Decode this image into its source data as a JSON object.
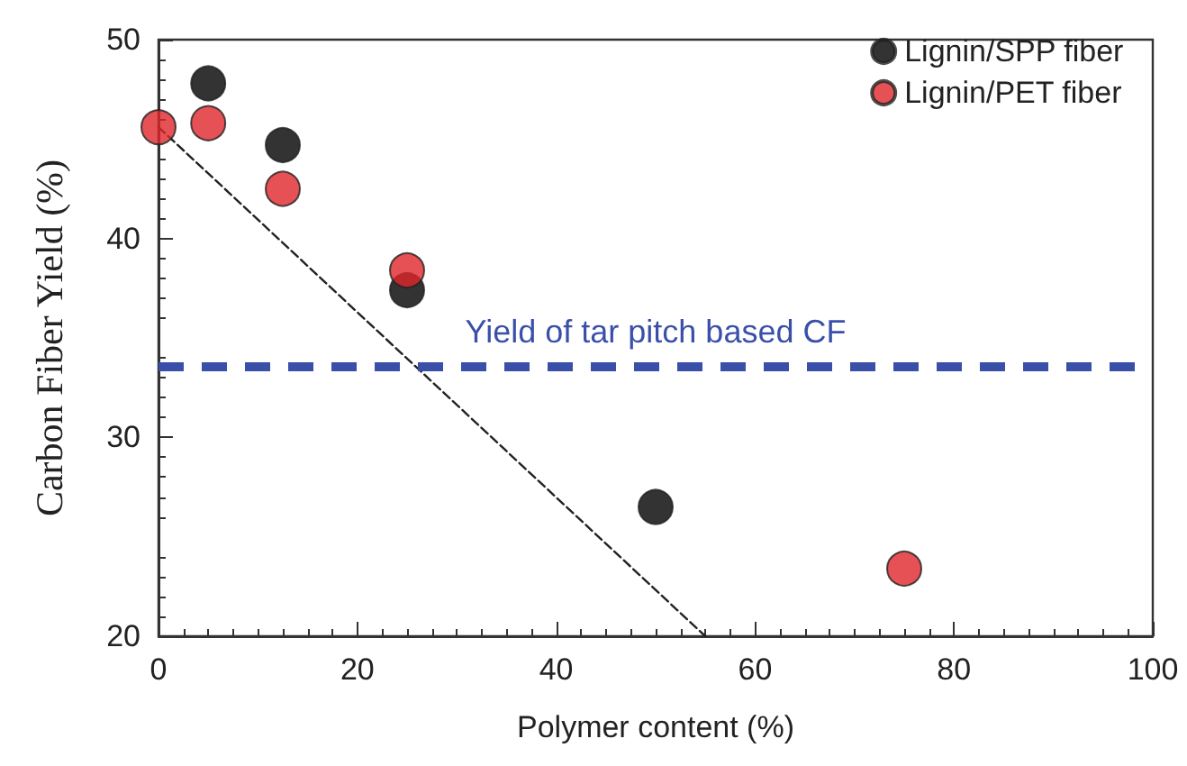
{
  "chart_data": {
    "type": "scatter",
    "xlabel": "Polymer content (%)",
    "ylabel": "Carbon Fiber Yield (%)",
    "xlim": [
      0,
      100
    ],
    "xticks": [
      0,
      20,
      40,
      60,
      80,
      100
    ],
    "ylim": [
      20,
      50
    ],
    "yticks": [
      20,
      30,
      40,
      50
    ],
    "series": [
      {
        "name": "Lignin/SPP fiber",
        "color": "#000000",
        "x": [
          5,
          12.5,
          25,
          50
        ],
        "values": [
          47.8,
          44.7,
          37.4,
          26.5
        ]
      },
      {
        "name": "Lignin/PET fiber",
        "color": "#e0262a",
        "x": [
          0,
          5,
          12.5,
          25,
          75
        ],
        "values": [
          45.6,
          45.8,
          42.5,
          38.4,
          23.4
        ]
      },
      {
        "type": "line",
        "color": "#222222",
        "x": [
          0,
          55
        ],
        "values": [
          45.6,
          20
        ],
        "line_style": "dashed",
        "marker": "none"
      }
    ],
    "ref_lines": [
      {
        "axis": "y",
        "value": 33.6,
        "label": "Yield of tar pitch based CF",
        "color": "#3a4fa8",
        "line_style": "dashed"
      }
    ],
    "marker": "circle",
    "grid": false,
    "legend": "top right"
  }
}
